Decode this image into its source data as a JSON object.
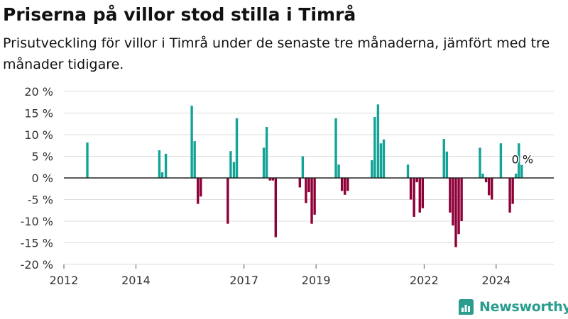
{
  "title": "Priserna på villor stod stilla i Timrå",
  "subtitle": "Prisutveckling för villor i Timrå under de senaste tre månaderna, jämfört med tre månader tidigare.",
  "brand": {
    "name": "Newsworthy",
    "icon": "newsworthy-logo-icon",
    "color": "#2a9d8f"
  },
  "colors": {
    "positive": "#13a397",
    "negative": "#8e0038",
    "zero_line": "#222222",
    "grid": "#dddddd"
  },
  "chart_data": {
    "type": "bar",
    "title": "Priserna på villor stod stilla i Timrå",
    "xlabel": "",
    "ylabel": "",
    "xlim": [
      2012.0,
      2025.6
    ],
    "ylim": [
      -20,
      20
    ],
    "grid": "horizontal",
    "y_ticks": [
      20,
      15,
      10,
      5,
      0,
      -5,
      -10,
      -15,
      -20
    ],
    "y_tick_labels": [
      "20 %",
      "15 %",
      "10 %",
      "5 %",
      "0 %",
      "-5 %",
      "-10 %",
      "-15 %",
      "-20 %"
    ],
    "x_ticks": [
      2012,
      2014,
      2017,
      2019,
      2022,
      2024
    ],
    "x_tick_labels": [
      "2012",
      "2014",
      "2017",
      "2019",
      "2022",
      "2024"
    ],
    "annotation": "0 %",
    "points": [
      {
        "x": 2012.65,
        "y": 8.2
      },
      {
        "x": 2014.65,
        "y": 6.4
      },
      {
        "x": 2014.73,
        "y": 1.3
      },
      {
        "x": 2014.83,
        "y": 5.6
      },
      {
        "x": 2015.55,
        "y": 16.7
      },
      {
        "x": 2015.63,
        "y": 8.5
      },
      {
        "x": 2015.72,
        "y": -6.0
      },
      {
        "x": 2015.8,
        "y": -4.3
      },
      {
        "x": 2016.55,
        "y": -10.6
      },
      {
        "x": 2016.63,
        "y": 6.2
      },
      {
        "x": 2016.72,
        "y": 3.7
      },
      {
        "x": 2016.8,
        "y": 13.8
      },
      {
        "x": 2017.55,
        "y": 7.0
      },
      {
        "x": 2017.63,
        "y": 11.8
      },
      {
        "x": 2017.72,
        "y": -0.6
      },
      {
        "x": 2017.8,
        "y": -0.6
      },
      {
        "x": 2017.88,
        "y": -13.7
      },
      {
        "x": 2018.55,
        "y": -2.2
      },
      {
        "x": 2018.63,
        "y": 5.0
      },
      {
        "x": 2018.72,
        "y": -5.8
      },
      {
        "x": 2018.8,
        "y": -3.3
      },
      {
        "x": 2018.88,
        "y": -10.6
      },
      {
        "x": 2018.96,
        "y": -8.5
      },
      {
        "x": 2019.55,
        "y": 13.8
      },
      {
        "x": 2019.63,
        "y": 3.1
      },
      {
        "x": 2019.72,
        "y": -3.0
      },
      {
        "x": 2019.8,
        "y": -3.9
      },
      {
        "x": 2019.88,
        "y": -3.0
      },
      {
        "x": 2020.55,
        "y": 4.1
      },
      {
        "x": 2020.63,
        "y": 14.1
      },
      {
        "x": 2020.72,
        "y": 17.0
      },
      {
        "x": 2020.8,
        "y": 8.0
      },
      {
        "x": 2020.88,
        "y": 8.9
      },
      {
        "x": 2021.55,
        "y": 3.1
      },
      {
        "x": 2021.63,
        "y": -5.0
      },
      {
        "x": 2021.72,
        "y": -9.0
      },
      {
        "x": 2021.8,
        "y": -1.0
      },
      {
        "x": 2021.88,
        "y": -8.0
      },
      {
        "x": 2021.96,
        "y": -7.0
      },
      {
        "x": 2022.55,
        "y": 9.0
      },
      {
        "x": 2022.63,
        "y": 6.1
      },
      {
        "x": 2022.72,
        "y": -8.0
      },
      {
        "x": 2022.8,
        "y": -11.0
      },
      {
        "x": 2022.88,
        "y": -16.0
      },
      {
        "x": 2022.96,
        "y": -13.0
      },
      {
        "x": 2023.04,
        "y": -10.0
      },
      {
        "x": 2023.55,
        "y": 7.0
      },
      {
        "x": 2023.63,
        "y": 1.0
      },
      {
        "x": 2023.72,
        "y": -1.0
      },
      {
        "x": 2023.8,
        "y": -4.0
      },
      {
        "x": 2023.88,
        "y": -5.0
      },
      {
        "x": 2024.13,
        "y": 8.0
      },
      {
        "x": 2024.38,
        "y": -8.0
      },
      {
        "x": 2024.46,
        "y": -6.0
      },
      {
        "x": 2024.55,
        "y": 1.0
      },
      {
        "x": 2024.63,
        "y": 8.0
      },
      {
        "x": 2024.71,
        "y": 3.0
      }
    ]
  }
}
